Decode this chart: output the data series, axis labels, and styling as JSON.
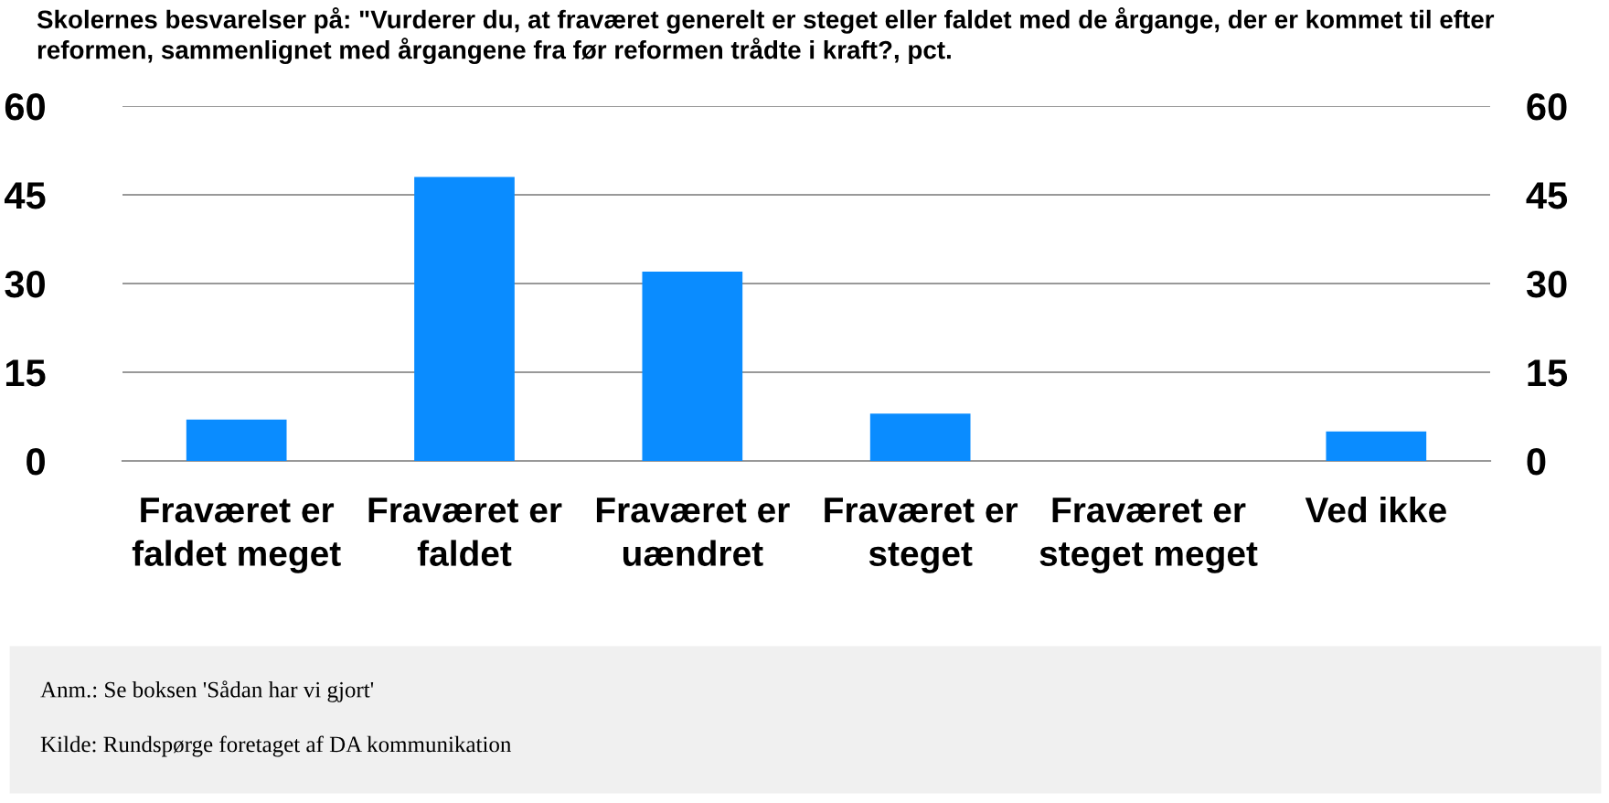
{
  "chart_data": {
    "type": "bar",
    "title": "Skolernes besvarelser på: \"Vurderer du, at fraværet generelt er steget eller faldet med de årgange, der er kommet til efter reformen, sammenlignet med årgangene fra før reformen trådte i kraft?, pct.",
    "categories": [
      "Fraværet er faldet meget",
      "Fraværet er faldet",
      "Fraværet er uændret",
      "Fraværet er steget",
      "Fraværet er steget meget",
      "Ved ikke"
    ],
    "series": [
      {
        "color": "#0a8cff",
        "values": [
          7,
          48,
          32,
          8,
          0,
          5
        ]
      }
    ],
    "ylim": [
      0,
      60
    ],
    "yticks": [
      0,
      15,
      30,
      45,
      60
    ],
    "y2lim": [
      0,
      60
    ],
    "y2ticks": [
      0,
      15,
      30,
      45,
      60
    ],
    "grid": "y",
    "legend": false,
    "annotations": [
      "Anm.: Se boksen 'Sådan har vi gjort'",
      "Kilde: Rundspørge foretaget af DA kommunikation"
    ]
  }
}
